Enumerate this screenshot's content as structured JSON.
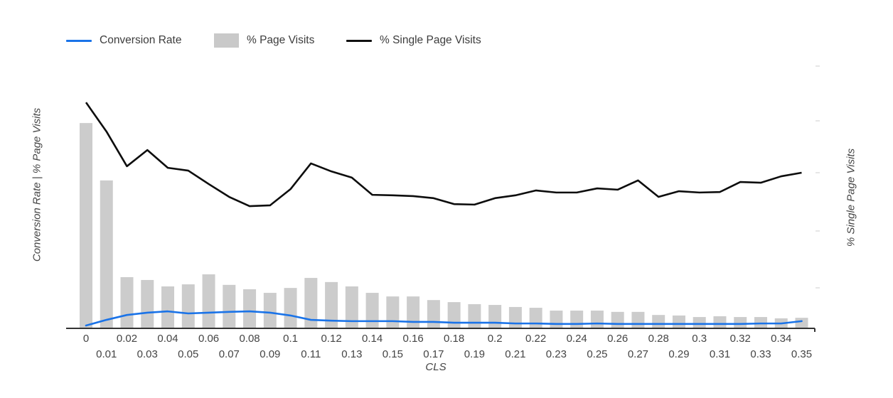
{
  "legend": {
    "items": [
      {
        "label": "Conversion Rate",
        "swatch": "line",
        "color": "#1a73e8"
      },
      {
        "label": "% Page Visits",
        "swatch": "bar",
        "color": "#c9c9c9"
      },
      {
        "label": "% Single Page Visits",
        "swatch": "line",
        "color": "#111111"
      }
    ]
  },
  "axes": {
    "x_label": "CLS",
    "y_left_label": "Conversion Rate | % Page Visits",
    "y_right_label": "% Single Page Visits"
  },
  "colors": {
    "bar": "#cccccc",
    "blue_line": "#1a73e8",
    "black_line": "#0d0d0d",
    "axis_line": "#333333",
    "tick_text": "#444444",
    "right_axis_tick": "#cccccc"
  },
  "chart_data": {
    "type": "bar",
    "subtype": "combo: histogram bars + 2 line series",
    "title": "",
    "xlabel": "CLS",
    "ylabel_left": "Conversion Rate | % Page Visits",
    "ylabel_right": "% Single Page Visits",
    "value_units": "relative height, % of plot area height (chart shows no numeric y-axis tick labels)",
    "ylim": [
      0,
      100
    ],
    "grid": false,
    "legend_position": "top-left",
    "x_tick_layout": "staggered two rows (even indices top row, odd indices bottom row)",
    "categories": [
      "0",
      "0.01",
      "0.02",
      "0.03",
      "0.04",
      "0.05",
      "0.06",
      "0.07",
      "0.08",
      "0.09",
      "0.1",
      "0.11",
      "0.12",
      "0.13",
      "0.14",
      "0.15",
      "0.16",
      "0.17",
      "0.18",
      "0.19",
      "0.2",
      "0.21",
      "0.22",
      "0.23",
      "0.24",
      "0.25",
      "0.26",
      "0.27",
      "0.28",
      "0.29",
      "0.3",
      "0.31",
      "0.32",
      "0.33",
      "0.34",
      "0.35"
    ],
    "series": [
      {
        "name": "Conversion Rate",
        "type": "line",
        "axis": "left",
        "color": "#1a73e8",
        "values": [
          1.1,
          3.3,
          5.2,
          6.1,
          6.6,
          5.8,
          6.1,
          6.4,
          6.6,
          6.1,
          5.0,
          3.3,
          3.0,
          2.8,
          2.8,
          2.8,
          2.5,
          2.5,
          2.2,
          2.2,
          2.2,
          1.9,
          1.9,
          1.7,
          1.7,
          1.9,
          1.7,
          1.7,
          1.7,
          1.7,
          1.7,
          1.7,
          1.7,
          1.9,
          1.9,
          2.8
        ]
      },
      {
        "name": "% Page Visits",
        "type": "bar",
        "axis": "left",
        "color": "#cccccc",
        "values": [
          79.8,
          57.5,
          19.9,
          18.8,
          16.3,
          17.1,
          21.0,
          16.9,
          15.2,
          13.8,
          15.7,
          19.6,
          18.0,
          16.3,
          13.8,
          12.4,
          12.4,
          11.0,
          10.2,
          9.4,
          9.1,
          8.3,
          8.0,
          6.9,
          6.9,
          6.9,
          6.4,
          6.4,
          5.2,
          5.0,
          4.4,
          4.7,
          4.4,
          4.4,
          3.9,
          4.1
        ]
      },
      {
        "name": "% Single Page Visits",
        "type": "line",
        "axis": "right",
        "color": "#0d0d0d",
        "values": [
          87.8,
          76.5,
          63.0,
          69.3,
          62.4,
          61.3,
          56.1,
          51.1,
          47.5,
          47.8,
          54.1,
          64.1,
          61.0,
          58.6,
          51.9,
          51.7,
          51.4,
          50.6,
          48.3,
          48.1,
          50.6,
          51.7,
          53.6,
          52.8,
          52.8,
          54.4,
          53.9,
          57.5,
          51.1,
          53.3,
          52.8,
          53.0,
          56.9,
          56.6,
          59.1,
          60.5
        ]
      }
    ]
  }
}
